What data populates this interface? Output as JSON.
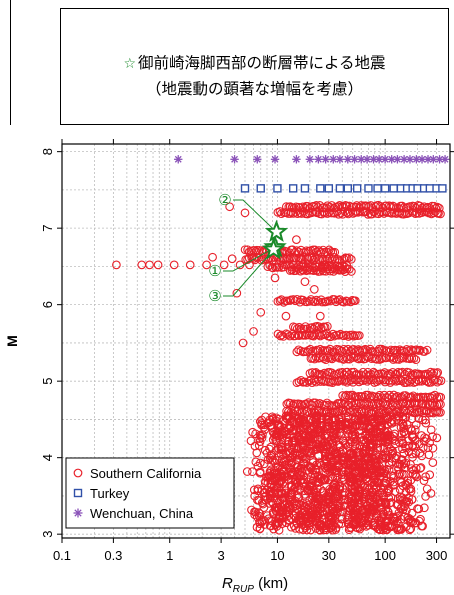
{
  "title": {
    "marker": "☆",
    "line1": "御前崎海脚西部の断層帯による地震",
    "line2": "（地震動の顕著な増幅を考慮）"
  },
  "chart_data": {
    "type": "scatter",
    "xlabel": "R_RUP (km)",
    "xlabel_main": "R",
    "xlabel_sub": "RUP",
    "xlabel_unit": " (km)",
    "ylabel": "M",
    "xscale": "log",
    "xlim": [
      0.1,
      400
    ],
    "ylim": [
      2.95,
      8.1
    ],
    "grid": true,
    "x_ticks": [
      {
        "value": 0.1,
        "label": "0.1"
      },
      {
        "value": 0.3,
        "label": "0.3"
      },
      {
        "value": 1,
        "label": "1"
      },
      {
        "value": 3,
        "label": "3"
      },
      {
        "value": 10,
        "label": "10"
      },
      {
        "value": 30,
        "label": "30"
      },
      {
        "value": 100,
        "label": "100"
      },
      {
        "value": 300,
        "label": "300"
      }
    ],
    "y_ticks": [
      {
        "value": 3,
        "label": "3"
      },
      {
        "value": 4,
        "label": "4"
      },
      {
        "value": 5,
        "label": "5"
      },
      {
        "value": 6,
        "label": "6"
      },
      {
        "value": 7,
        "label": "7"
      },
      {
        "value": 8,
        "label": "8"
      }
    ],
    "legend_position": "bottom-left",
    "series": [
      {
        "name": "Southern California",
        "marker": "circle",
        "color": "#e8202a",
        "bands": [
          {
            "m": 7.28,
            "x_from": 12,
            "x_to": 330
          },
          {
            "m": 7.2,
            "x_from": 10,
            "x_to": 340
          },
          {
            "m": 6.7,
            "x_from": 5,
            "x_to": 35
          },
          {
            "m": 6.6,
            "x_from": 5,
            "x_to": 50
          },
          {
            "m": 6.5,
            "x_from": 8,
            "x_to": 45
          },
          {
            "m": 6.45,
            "x_from": 13,
            "x_to": 50
          },
          {
            "m": 6.05,
            "x_from": 10,
            "x_to": 55
          },
          {
            "m": 5.7,
            "x_from": 14,
            "x_to": 30
          },
          {
            "m": 5.6,
            "x_from": 10,
            "x_to": 60
          },
          {
            "m": 5.4,
            "x_from": 15,
            "x_to": 250
          },
          {
            "m": 5.3,
            "x_from": 20,
            "x_to": 200
          },
          {
            "m": 5.1,
            "x_from": 20,
            "x_to": 320
          },
          {
            "m": 5.0,
            "x_from": 15,
            "x_to": 340
          },
          {
            "m": 4.8,
            "x_from": 40,
            "x_to": 340
          },
          {
            "m": 4.7,
            "x_from": 12,
            "x_to": 340
          },
          {
            "m": 4.6,
            "x_from": 12,
            "x_to": 340
          }
        ],
        "dense_region": {
          "x_from": 5,
          "x_to": 330,
          "m_from": 3.05,
          "m_to": 4.55
        },
        "points": [
          {
            "x": 0.32,
            "m": 6.52
          },
          {
            "x": 0.55,
            "m": 6.52
          },
          {
            "x": 0.65,
            "m": 6.52
          },
          {
            "x": 0.78,
            "m": 6.52
          },
          {
            "x": 1.1,
            "m": 6.52
          },
          {
            "x": 1.55,
            "m": 6.52
          },
          {
            "x": 2.2,
            "m": 6.52
          },
          {
            "x": 2.5,
            "m": 6.62
          },
          {
            "x": 3.2,
            "m": 6.52
          },
          {
            "x": 4.5,
            "m": 6.52
          },
          {
            "x": 5.5,
            "m": 6.52
          },
          {
            "x": 3.6,
            "m": 7.28
          },
          {
            "x": 5.0,
            "m": 7.2
          },
          {
            "x": 3.8,
            "m": 6.6
          },
          {
            "x": 4.2,
            "m": 6.15
          },
          {
            "x": 4.8,
            "m": 5.5
          },
          {
            "x": 6.0,
            "m": 5.65
          },
          {
            "x": 7.0,
            "m": 5.9
          },
          {
            "x": 9.5,
            "m": 6.35
          },
          {
            "x": 15,
            "m": 6.85
          },
          {
            "x": 18,
            "m": 6.3
          },
          {
            "x": 22,
            "m": 6.2
          },
          {
            "x": 25,
            "m": 5.85
          },
          {
            "x": 12,
            "m": 5.85
          }
        ]
      },
      {
        "name": "Turkey",
        "marker": "square",
        "color": "#3050a8",
        "points": [
          {
            "x": 5,
            "m": 7.52
          },
          {
            "x": 7,
            "m": 7.52
          },
          {
            "x": 10,
            "m": 7.52
          },
          {
            "x": 14,
            "m": 7.52
          },
          {
            "x": 18,
            "m": 7.52
          },
          {
            "x": 25,
            "m": 7.52
          },
          {
            "x": 30,
            "m": 7.52
          },
          {
            "x": 38,
            "m": 7.52
          },
          {
            "x": 45,
            "m": 7.52
          },
          {
            "x": 55,
            "m": 7.52
          },
          {
            "x": 70,
            "m": 7.52
          },
          {
            "x": 85,
            "m": 7.52
          },
          {
            "x": 100,
            "m": 7.52
          },
          {
            "x": 120,
            "m": 7.52
          },
          {
            "x": 140,
            "m": 7.52
          },
          {
            "x": 160,
            "m": 7.52
          },
          {
            "x": 180,
            "m": 7.52
          },
          {
            "x": 200,
            "m": 7.52
          },
          {
            "x": 230,
            "m": 7.52
          },
          {
            "x": 260,
            "m": 7.52
          },
          {
            "x": 300,
            "m": 7.52
          },
          {
            "x": 340,
            "m": 7.52
          }
        ]
      },
      {
        "name": "Wenchuan, China",
        "marker": "asterisk",
        "color": "#8a52b8",
        "points": [
          {
            "x": 1.2,
            "m": 7.9
          },
          {
            "x": 4.0,
            "m": 7.9
          },
          {
            "x": 6.5,
            "m": 7.9
          },
          {
            "x": 9.5,
            "m": 7.9
          },
          {
            "x": 15,
            "m": 7.9
          },
          {
            "x": 20,
            "m": 7.9
          },
          {
            "x": 24,
            "m": 7.9
          },
          {
            "x": 28,
            "m": 7.9
          },
          {
            "x": 33,
            "m": 7.9
          },
          {
            "x": 38,
            "m": 7.9
          },
          {
            "x": 45,
            "m": 7.9
          },
          {
            "x": 52,
            "m": 7.9
          },
          {
            "x": 60,
            "m": 7.9
          },
          {
            "x": 68,
            "m": 7.9
          },
          {
            "x": 78,
            "m": 7.9
          },
          {
            "x": 88,
            "m": 7.9
          },
          {
            "x": 100,
            "m": 7.9
          },
          {
            "x": 115,
            "m": 7.9
          },
          {
            "x": 130,
            "m": 7.9
          },
          {
            "x": 150,
            "m": 7.9
          },
          {
            "x": 170,
            "m": 7.9
          },
          {
            "x": 195,
            "m": 7.9
          },
          {
            "x": 220,
            "m": 7.9
          },
          {
            "x": 250,
            "m": 7.9
          },
          {
            "x": 280,
            "m": 7.9
          },
          {
            "x": 320,
            "m": 7.9
          },
          {
            "x": 360,
            "m": 7.9
          }
        ]
      }
    ],
    "highlight_events": [
      {
        "label": "①",
        "x": 9.5,
        "m": 6.75,
        "color": "#1a8a2a"
      },
      {
        "label": "②",
        "x": 9.8,
        "m": 6.95,
        "color": "#1a8a2a"
      },
      {
        "label": "③",
        "x": 9.2,
        "m": 6.72,
        "color": "#1a8a2a"
      }
    ],
    "annotations": [
      {
        "label": "②",
        "target": "②",
        "placement": "upper-left"
      },
      {
        "label": "①",
        "target": "①",
        "placement": "left"
      },
      {
        "label": "③",
        "target": "③",
        "placement": "lower-left"
      }
    ]
  }
}
